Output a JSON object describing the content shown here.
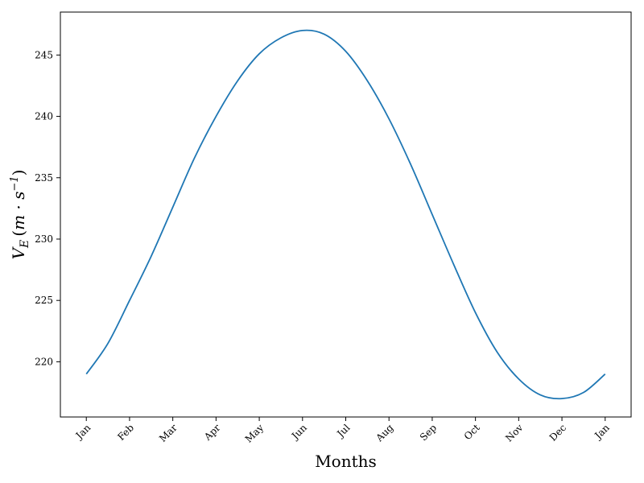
{
  "chart_data": {
    "type": "line",
    "title": "",
    "xlabel": "Months",
    "ylabel": "V_E (m · s^-1)",
    "ylabel_parts": {
      "v": "V",
      "sub": "E",
      "open": "(",
      "unit": "m · s",
      "sup": "−1",
      "close": ")"
    },
    "xlim": [
      -0.6,
      12.6
    ],
    "ylim": [
      215.5,
      248.5
    ],
    "x_tick_labels": [
      "Jan",
      "Feb",
      "Mar",
      "Apr",
      "May",
      "Jun",
      "Jul",
      "Aug",
      "Sep",
      "Oct",
      "Nov",
      "Dec",
      "Jan"
    ],
    "x_tick_positions": [
      0,
      1,
      2,
      3,
      4,
      5,
      6,
      7,
      8,
      9,
      10,
      11,
      12
    ],
    "y_ticks": [
      220,
      225,
      230,
      235,
      240,
      245
    ],
    "grid": false,
    "color": "#1f77b4",
    "series": [
      {
        "x": [
          0,
          0.5,
          1,
          1.5,
          2,
          2.5,
          3,
          3.5,
          4,
          4.5,
          5,
          5.5,
          6,
          6.5,
          7,
          7.5,
          8,
          8.5,
          9,
          9.5,
          10,
          10.5,
          11,
          11.5,
          12
        ],
        "y": [
          219.0,
          221.5,
          225.0,
          228.6,
          232.6,
          236.6,
          240.0,
          242.9,
          245.1,
          246.4,
          247.0,
          246.7,
          245.3,
          242.9,
          239.8,
          236.1,
          232.0,
          227.9,
          224.0,
          220.8,
          218.6,
          217.3,
          217.0,
          217.5,
          219.0
        ]
      }
    ]
  }
}
